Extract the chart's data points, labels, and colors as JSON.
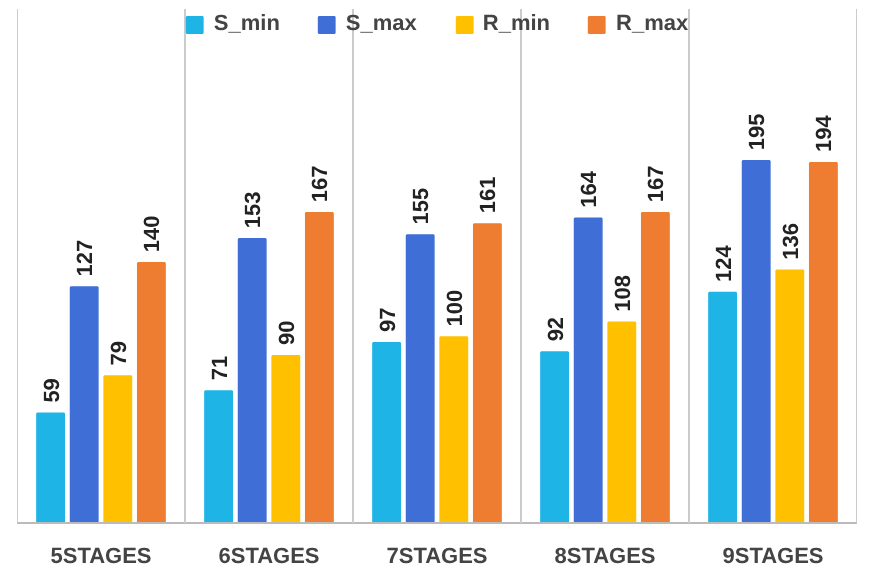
{
  "chart_data": {
    "type": "bar",
    "categories": [
      "5STAGES",
      "6STAGES",
      "7STAGES",
      "8STAGES",
      "9STAGES"
    ],
    "series": [
      {
        "name": "S_min",
        "color": "#1fb4e6",
        "values": [
          59,
          71,
          97,
          92,
          124
        ]
      },
      {
        "name": "S_max",
        "color": "#3f6fd6",
        "values": [
          127,
          153,
          155,
          164,
          195
        ]
      },
      {
        "name": "R_min",
        "color": "#ffc000",
        "values": [
          79,
          90,
          100,
          108,
          136
        ]
      },
      {
        "name": "R_max",
        "color": "#ee7d31",
        "values": [
          140,
          167,
          161,
          167,
          194
        ]
      }
    ],
    "data_labels": true,
    "legend": "top",
    "grid": false
  }
}
